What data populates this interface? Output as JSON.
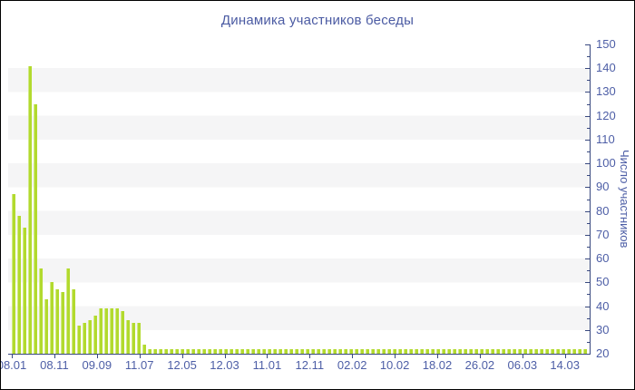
{
  "title": "Динамика участников беседы",
  "colors": {
    "border": "#000000",
    "title_text": "#4b5ba3",
    "axis_label": "#4d5ea6",
    "axis_line": "#39497f",
    "bar_fill": "#b2da2e",
    "bar_edge": "#d2ea85",
    "stripe": "#f5f5f6",
    "background": "#ffffff"
  },
  "chart_data": {
    "type": "bar",
    "title": "Динамика участников беседы",
    "xlabel": "",
    "ylabel": "Число участников",
    "ylim": [
      20,
      150
    ],
    "y_axis_position": "right",
    "grid": "alternating horizontal bands every 10 units",
    "legend": "none",
    "y_ticks": [
      150,
      140,
      130,
      120,
      110,
      100,
      90,
      80,
      70,
      60,
      50,
      40,
      30,
      20
    ],
    "x_labels": [
      "08.01",
      "08.11",
      "09.09",
      "11.07",
      "12.05",
      "12.03",
      "11.01",
      "12.11",
      "02.02",
      "10.02",
      "18.02",
      "26.02",
      "06.03",
      "14.03"
    ],
    "values": [
      87,
      78,
      73,
      141,
      125,
      56,
      43,
      50,
      47,
      46,
      56,
      47,
      32,
      33,
      34,
      36,
      39,
      39,
      39,
      39,
      38,
      34,
      33,
      33,
      24,
      22,
      22,
      22,
      22,
      22,
      22,
      22,
      22,
      22,
      22,
      22,
      22,
      22,
      22,
      22,
      22,
      22,
      22,
      22,
      22,
      22,
      22,
      22,
      22,
      22,
      22,
      22,
      22,
      22,
      22,
      22,
      22,
      22,
      22,
      22,
      22,
      22,
      22,
      22,
      22,
      22,
      22,
      22,
      22,
      22,
      22,
      22,
      22,
      22,
      22,
      22,
      22,
      22,
      22,
      22,
      22,
      22,
      22,
      22,
      22,
      22,
      22,
      22,
      22,
      22,
      22,
      22,
      22,
      22,
      22,
      22,
      22,
      22,
      22,
      22,
      22,
      22,
      22,
      22,
      22,
      22
    ]
  }
}
